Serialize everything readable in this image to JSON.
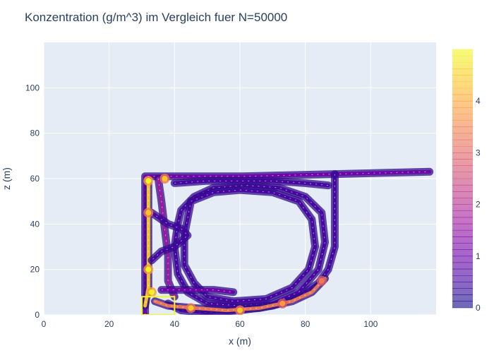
{
  "chart_data": {
    "type": "contour",
    "title": "Konzentration (g/m^3) im Vergleich fuer N=50000",
    "xlabel": "x (m)",
    "ylabel": "z (m)",
    "xlim": [
      0,
      120
    ],
    "ylim": [
      0,
      120
    ],
    "x_ticks": [
      0,
      20,
      40,
      60,
      80,
      100
    ],
    "y_ticks": [
      0,
      20,
      40,
      60,
      80,
      100
    ],
    "grid": true,
    "plot_background": "#e5ecf6",
    "colorscale": [
      "#0d0887",
      "#46039f",
      "#7201a8",
      "#9c179e",
      "#bd3786",
      "#d8576b",
      "#ed7953",
      "#fb9f3a",
      "#fdca26",
      "#f0f921"
    ],
    "colorbar": {
      "range": [
        0,
        5
      ],
      "ticks": [
        0,
        1,
        2,
        3,
        4
      ],
      "placement": "right"
    },
    "paths": [
      {
        "name": "outer-channel",
        "level": 1.2,
        "points": [
          [
            31,
            0
          ],
          [
            31,
            61
          ],
          [
            61,
            61
          ],
          [
            89,
            62
          ],
          [
            118,
            63
          ]
        ]
      },
      {
        "name": "right-wall",
        "level": 0.8,
        "points": [
          [
            89,
            62
          ],
          [
            89,
            30
          ],
          [
            87,
            20
          ],
          [
            84,
            14
          ],
          [
            78,
            8
          ],
          [
            70,
            4
          ],
          [
            60,
            2
          ],
          [
            50,
            1
          ],
          [
            42,
            2
          ],
          [
            38,
            5
          ]
        ]
      },
      {
        "name": "left-wall",
        "level": 4.5,
        "points": [
          [
            32,
            58
          ],
          [
            32,
            40
          ],
          [
            32,
            25
          ],
          [
            32,
            12
          ],
          [
            31,
            4
          ]
        ]
      },
      {
        "name": "inner-loop",
        "level": 0.6,
        "points": [
          [
            42,
            46
          ],
          [
            46,
            52
          ],
          [
            52,
            56
          ],
          [
            62,
            57
          ],
          [
            72,
            56
          ],
          [
            80,
            52
          ],
          [
            85,
            45
          ],
          [
            86,
            32
          ],
          [
            84,
            20
          ],
          [
            78,
            10
          ],
          [
            70,
            5
          ],
          [
            60,
            4
          ],
          [
            50,
            5
          ],
          [
            44,
            10
          ],
          [
            41,
            18
          ],
          [
            40,
            30
          ],
          [
            41,
            40
          ],
          [
            42,
            46
          ]
        ]
      },
      {
        "name": "inner-ring",
        "level": 0.4,
        "points": [
          [
            45,
            50
          ],
          [
            52,
            54
          ],
          [
            60,
            55
          ],
          [
            70,
            54
          ],
          [
            78,
            50
          ],
          [
            82,
            42
          ],
          [
            83,
            30
          ],
          [
            81,
            20
          ],
          [
            76,
            12
          ],
          [
            68,
            7
          ],
          [
            58,
            6
          ],
          [
            50,
            8
          ],
          [
            46,
            14
          ],
          [
            43,
            22
          ],
          [
            43,
            35
          ],
          [
            45,
            50
          ]
        ]
      },
      {
        "name": "bottom-stream",
        "level": 3.2,
        "points": [
          [
            34,
            6
          ],
          [
            38,
            4
          ],
          [
            46,
            3
          ],
          [
            56,
            2
          ],
          [
            66,
            3
          ],
          [
            76,
            6
          ],
          [
            82,
            10
          ],
          [
            86,
            16
          ]
        ]
      },
      {
        "name": "left-secondary",
        "level": 1.8,
        "points": [
          [
            35,
            60
          ],
          [
            36,
            50
          ],
          [
            37,
            38
          ],
          [
            38,
            26
          ],
          [
            38,
            15
          ],
          [
            40,
            8
          ]
        ]
      },
      {
        "name": "mid-band",
        "level": 0.5,
        "points": [
          [
            33,
            45
          ],
          [
            38,
            40
          ],
          [
            42,
            38
          ],
          [
            44,
            35
          ],
          [
            40,
            30
          ],
          [
            36,
            28
          ],
          [
            33,
            24
          ]
        ]
      },
      {
        "name": "upper-inner",
        "level": 0.7,
        "points": [
          [
            40,
            58
          ],
          [
            50,
            59
          ],
          [
            60,
            59
          ],
          [
            70,
            59
          ],
          [
            80,
            58
          ],
          [
            87,
            57
          ]
        ]
      },
      {
        "name": "lower-shelf",
        "level": 1.0,
        "points": [
          [
            36,
            11
          ],
          [
            44,
            11
          ],
          [
            52,
            11
          ],
          [
            58,
            10
          ]
        ]
      }
    ],
    "hotspots": [
      {
        "x": 32,
        "y": 59,
        "level": 4.8
      },
      {
        "x": 37,
        "y": 60,
        "level": 4.6
      },
      {
        "x": 32,
        "y": 20,
        "level": 4.8
      },
      {
        "x": 33,
        "y": 10,
        "level": 4.9
      },
      {
        "x": 45,
        "y": 3,
        "level": 4.5
      },
      {
        "x": 60,
        "y": 2,
        "level": 4.2
      },
      {
        "x": 73,
        "y": 5,
        "level": 4.0
      },
      {
        "x": 32,
        "y": 45,
        "level": 4.3
      },
      {
        "x": 85,
        "y": 15,
        "level": 3.5
      }
    ],
    "outlined_box": {
      "x0": 30,
      "x1": 40,
      "y0": 0,
      "y1": 8,
      "level": 5
    }
  }
}
